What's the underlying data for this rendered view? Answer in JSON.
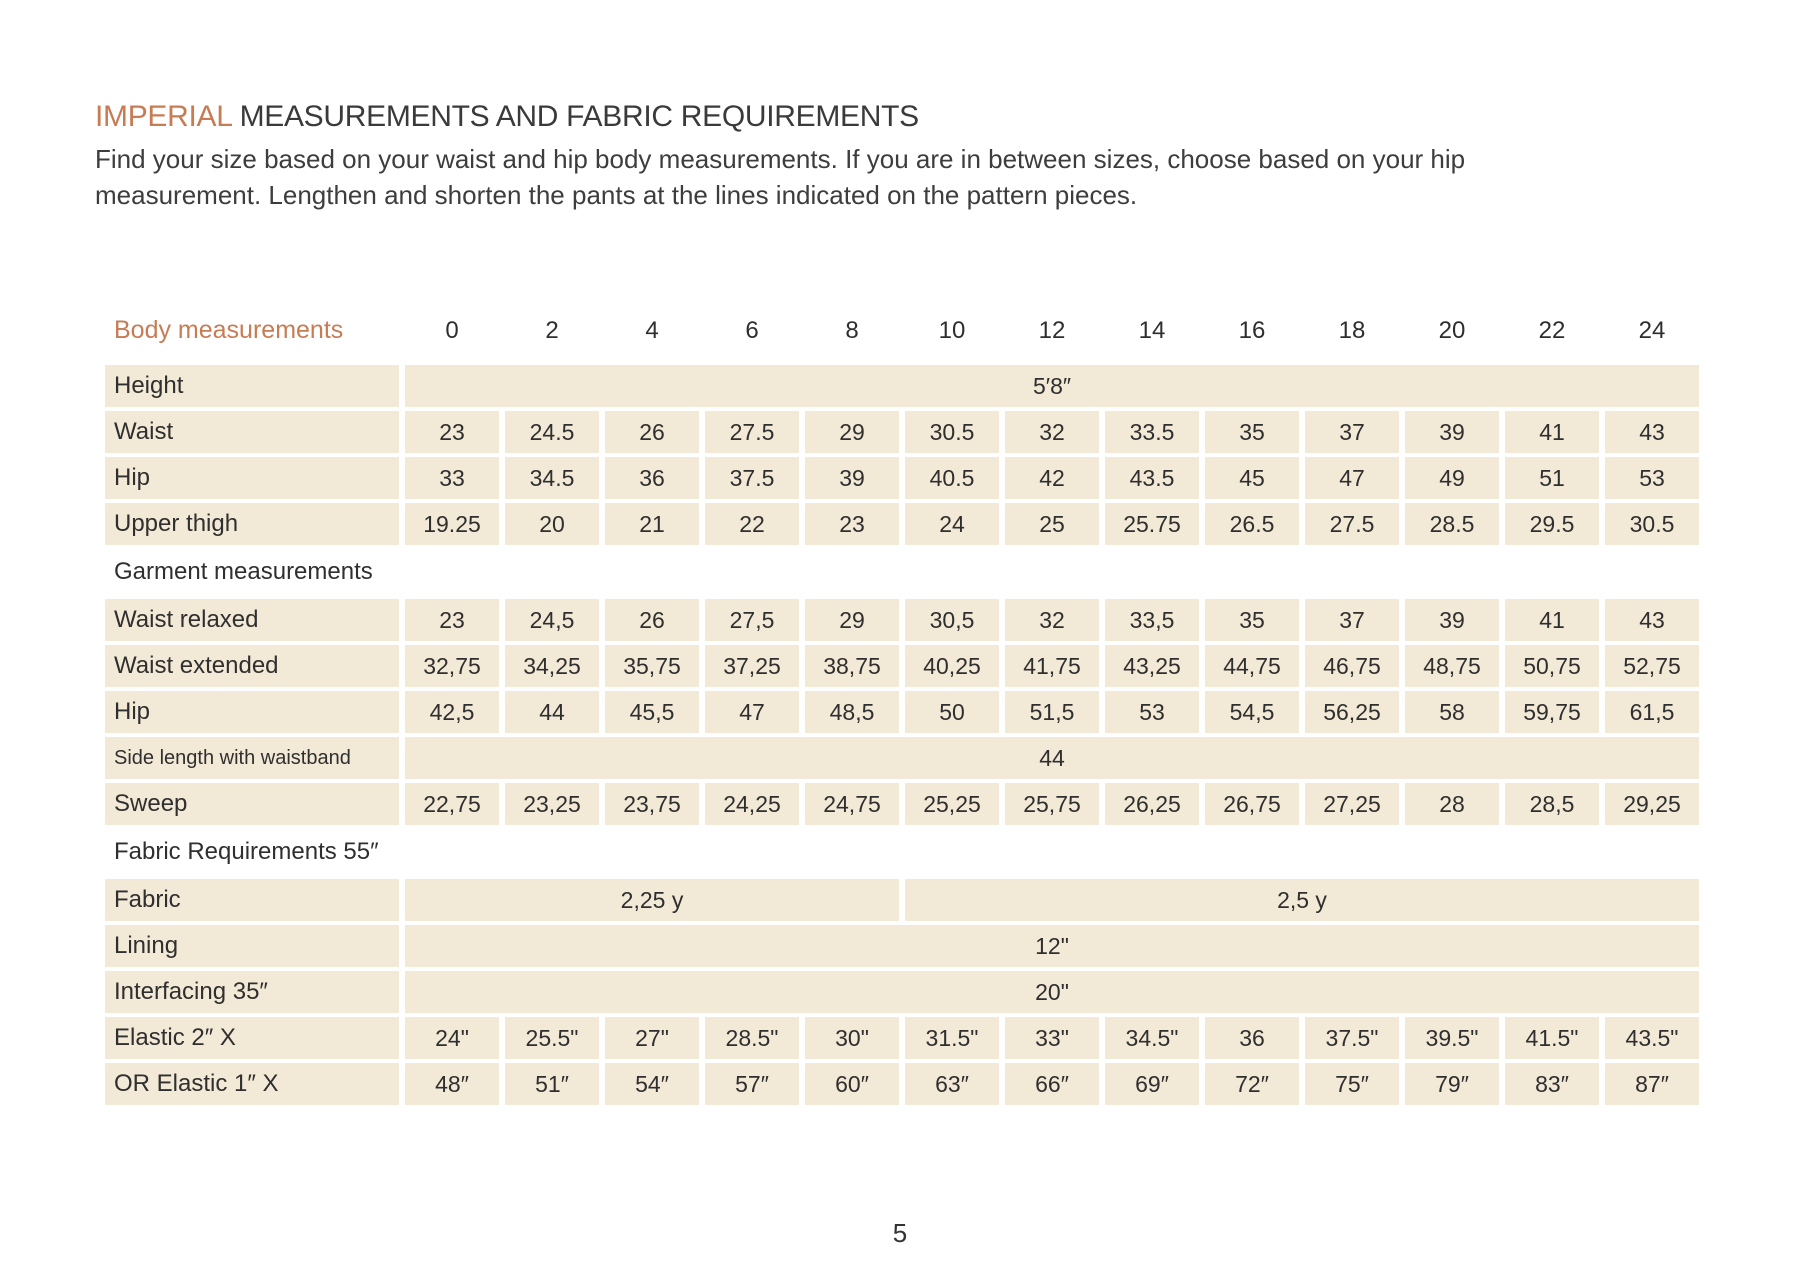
{
  "page": {
    "title_highlight": "IMPERIAL",
    "title_rest": " MEASUREMENTS AND FABRIC REQUIREMENTS",
    "intro_line1": "Find your size based on your waist and hip body measurements. If you are in between sizes, choose based on your hip",
    "intro_line2": "measurement. Lengthen and shorten the pants at the lines indicated on the pattern pieces.",
    "page_number": "5"
  },
  "colors": {
    "accent_orange": "#c77c54",
    "cell_beige": "#f3e9d7",
    "text_dark": "#2f2f2f",
    "page_background": "#ffffff"
  },
  "table": {
    "header_label": "Body measurements",
    "sizes": [
      "0",
      "2",
      "4",
      "6",
      "8",
      "10",
      "12",
      "14",
      "16",
      "18",
      "20",
      "22",
      "24"
    ],
    "rows": [
      {
        "label": "Height",
        "type": "merged",
        "value": "5′8″"
      },
      {
        "label": "Waist",
        "type": "values",
        "values": [
          "23",
          "24.5",
          "26",
          "27.5",
          "29",
          "30.5",
          "32",
          "33.5",
          "35",
          "37",
          "39",
          "41",
          "43"
        ]
      },
      {
        "label": "Hip",
        "type": "values",
        "values": [
          "33",
          "34.5",
          "36",
          "37.5",
          "39",
          "40.5",
          "42",
          "43.5",
          "45",
          "47",
          "49",
          "51",
          "53"
        ]
      },
      {
        "label": "Upper thigh",
        "type": "values",
        "values": [
          "19.25",
          "20",
          "21",
          "22",
          "23",
          "24",
          "25",
          "25.75",
          "26.5",
          "27.5",
          "28.5",
          "29.5",
          "30.5"
        ]
      },
      {
        "label": "Garment measurements",
        "type": "section"
      },
      {
        "label": "Waist relaxed",
        "type": "values",
        "values": [
          "23",
          "24,5",
          "26",
          "27,5",
          "29",
          "30,5",
          "32",
          "33,5",
          "35",
          "37",
          "39",
          "41",
          "43"
        ]
      },
      {
        "label": "Waist extended",
        "type": "values",
        "values": [
          "32,75",
          "34,25",
          "35,75",
          "37,25",
          "38,75",
          "40,25",
          "41,75",
          "43,25",
          "44,75",
          "46,75",
          "48,75",
          "50,75",
          "52,75"
        ]
      },
      {
        "label": "Hip",
        "type": "values",
        "values": [
          "42,5",
          "44",
          "45,5",
          "47",
          "48,5",
          "50",
          "51,5",
          "53",
          "54,5",
          "56,25",
          "58",
          "59,75",
          "61,5"
        ]
      },
      {
        "label": "Side length with waistband",
        "type": "merged",
        "value": "44",
        "small": true
      },
      {
        "label": "Sweep",
        "type": "values",
        "values": [
          "22,75",
          "23,25",
          "23,75",
          "24,25",
          "24,75",
          "25,25",
          "25,75",
          "26,25",
          "26,75",
          "27,25",
          "28",
          "28,5",
          "29,25"
        ]
      },
      {
        "label": "Fabric Requirements 55″",
        "type": "section"
      },
      {
        "label": "Fabric",
        "type": "split",
        "left_value": "2,25 y",
        "left_span": 5,
        "right_value": "2,5 y",
        "right_span": 8
      },
      {
        "label": "Lining",
        "type": "merged",
        "value": "12\""
      },
      {
        "label": "Interfacing 35″",
        "type": "merged",
        "value": "20\""
      },
      {
        "label": "Elastic 2″ X",
        "type": "values",
        "values": [
          "24\"",
          "25.5\"",
          "27\"",
          "28.5\"",
          "30\"",
          "31.5\"",
          "33\"",
          "34.5\"",
          "36",
          "37.5\"",
          "39.5\"",
          "41.5\"",
          "43.5\""
        ]
      },
      {
        "label": "OR Elastic 1″  X",
        "type": "values",
        "values": [
          "48″",
          "51″",
          "54″",
          "57″",
          "60″",
          "63″",
          "66″",
          "69″",
          "72″",
          "75″",
          "79″",
          "83″",
          "87″"
        ]
      }
    ]
  }
}
